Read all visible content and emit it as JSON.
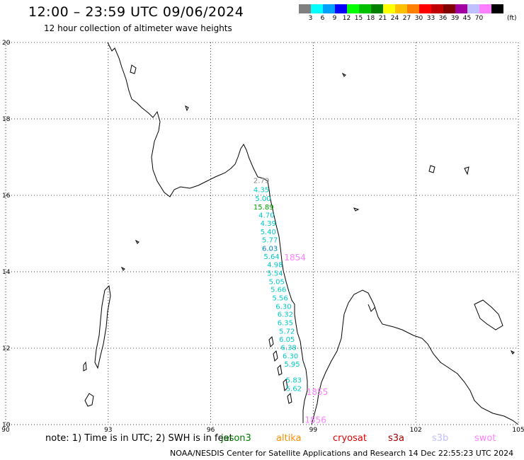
{
  "header": {
    "title": "12:00 – 23:59 UTC 09/06/2024",
    "subtitle": "12 hour collection of altimeter wave heights"
  },
  "colorbar": {
    "colors": [
      "#808080",
      "#00ffff",
      "#00a0ff",
      "#0000ff",
      "#00ff00",
      "#00c000",
      "#008000",
      "#ffff00",
      "#ffc000",
      "#ff8000",
      "#ff0000",
      "#c00000",
      "#800000",
      "#a000a0",
      "#c0c0ff",
      "#ff80ff",
      "#000000"
    ],
    "labels": [
      "3",
      "6",
      "9",
      "12",
      "15",
      "18",
      "21",
      "24",
      "27",
      "30",
      "33",
      "36",
      "39",
      "45",
      "70"
    ],
    "unit": "(ft)"
  },
  "axes": {
    "x_ticks": [
      "90",
      "93",
      "96",
      "99",
      "102",
      "105"
    ],
    "y_ticks": [
      "20",
      "18",
      "16",
      "14",
      "12",
      "10"
    ]
  },
  "observations": [
    {
      "value": "2.79",
      "color": "#808080",
      "lon": 97.25,
      "lat": 16.32
    },
    {
      "value": "4.35",
      "color": "#00c8c8",
      "lon": 97.25,
      "lat": 16.08
    },
    {
      "value": "5.00",
      "color": "#00c8c8",
      "lon": 97.3,
      "lat": 15.85
    },
    {
      "value": "15.89",
      "color": "#00a000",
      "lon": 97.25,
      "lat": 15.63
    },
    {
      "value": "4.70",
      "color": "#00c8c8",
      "lon": 97.4,
      "lat": 15.42
    },
    {
      "value": "4.39",
      "color": "#00c8c8",
      "lon": 97.45,
      "lat": 15.2
    },
    {
      "value": "5.40",
      "color": "#00c8c8",
      "lon": 97.45,
      "lat": 14.98
    },
    {
      "value": "5.77",
      "color": "#00c8c8",
      "lon": 97.5,
      "lat": 14.77
    },
    {
      "value": "6.03",
      "color": "#0080c0",
      "lon": 97.5,
      "lat": 14.55
    },
    {
      "value": "5.64",
      "color": "#00c8c8",
      "lon": 97.55,
      "lat": 14.33
    },
    {
      "value": "4.98",
      "color": "#00c8c8",
      "lon": 97.65,
      "lat": 14.12
    },
    {
      "value": "5.54",
      "color": "#00c8c8",
      "lon": 97.65,
      "lat": 13.9
    },
    {
      "value": "5.05",
      "color": "#00c8c8",
      "lon": 97.7,
      "lat": 13.68
    },
    {
      "value": "5.66",
      "color": "#00c8c8",
      "lon": 97.75,
      "lat": 13.47
    },
    {
      "value": "5.56",
      "color": "#00c8c8",
      "lon": 97.8,
      "lat": 13.25
    },
    {
      "value": "6.30",
      "color": "#00c8c8",
      "lon": 97.9,
      "lat": 13.03
    },
    {
      "value": "6.32",
      "color": "#00c8c8",
      "lon": 97.95,
      "lat": 12.82
    },
    {
      "value": "6.35",
      "color": "#00c8c8",
      "lon": 97.95,
      "lat": 12.6
    },
    {
      "value": "5.72",
      "color": "#00c8c8",
      "lon": 98.0,
      "lat": 12.38
    },
    {
      "value": "6.05",
      "color": "#00c8c8",
      "lon": 98.0,
      "lat": 12.17
    },
    {
      "value": "6.38",
      "color": "#00c8c8",
      "lon": 98.05,
      "lat": 11.95
    },
    {
      "value": "6.30",
      "color": "#00c8c8",
      "lon": 98.1,
      "lat": 11.73
    },
    {
      "value": "5.95",
      "color": "#00c8c8",
      "lon": 98.15,
      "lat": 11.52
    },
    {
      "value": "5.83",
      "color": "#00c8c8",
      "lon": 98.2,
      "lat": 11.1
    },
    {
      "value": "5.62",
      "color": "#00c8c8",
      "lon": 98.2,
      "lat": 10.88
    },
    {
      "value": "1854",
      "color": "#ff80ff",
      "lon": 98.15,
      "lat": 14.3
    },
    {
      "value": "1855",
      "color": "#ff80ff",
      "lon": 98.8,
      "lat": 10.78
    },
    {
      "value": "1856",
      "color": "#ff80ff",
      "lon": 98.75,
      "lat": 10.05
    }
  ],
  "footer": {
    "note": "note:  1) Time is in UTC;  2) SWH is in feet",
    "legend": [
      {
        "name": "jason3",
        "color": "#007a00"
      },
      {
        "name": "altika",
        "color": "#ff8c00"
      },
      {
        "name": "cryosat",
        "color": "#e00000"
      },
      {
        "name": "s3a",
        "color": "#a00000"
      },
      {
        "name": "s3b",
        "color": "#c0c0ff"
      },
      {
        "name": "swot",
        "color": "#ff80ff"
      }
    ],
    "credit": "NOAA/NESDIS Center for Satellite Applications and Research    14 Dec 22:55:23 UTC 2024"
  }
}
